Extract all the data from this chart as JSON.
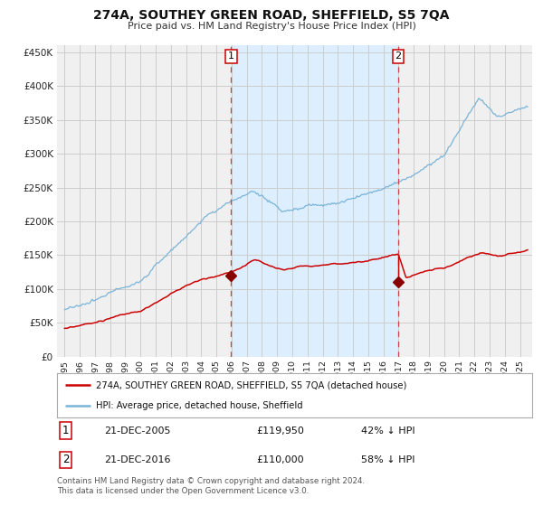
{
  "title": "274A, SOUTHEY GREEN ROAD, SHEFFIELD, S5 7QA",
  "subtitle": "Price paid vs. HM Land Registry's House Price Index (HPI)",
  "legend_line1": "274A, SOUTHEY GREEN ROAD, SHEFFIELD, S5 7QA (detached house)",
  "legend_line2": "HPI: Average price, detached house, Sheffield",
  "annotation1_date": "21-DEC-2005",
  "annotation1_price": "£119,950",
  "annotation1_pct": "42% ↓ HPI",
  "annotation2_date": "21-DEC-2016",
  "annotation2_price": "£110,000",
  "annotation2_pct": "58% ↓ HPI",
  "footer": "Contains HM Land Registry data © Crown copyright and database right 2024.\nThis data is licensed under the Open Government Licence v3.0.",
  "hpi_color": "#7ab4d8",
  "price_color": "#cc0000",
  "vline_color": "#cc4444",
  "shade_color": "#ddeeff",
  "marker_color": "#880000",
  "ylabel_color": "#222222",
  "grid_color": "#cccccc",
  "background_color": "#ffffff",
  "plot_bg_color": "#f0f0f0",
  "vline1_x": 2005.97,
  "vline2_x": 2016.97,
  "marker1_x": 2005.97,
  "marker1_y": 119950,
  "marker2_x": 2016.97,
  "marker2_y": 110000,
  "marker2_top_y": 150000,
  "ylim": [
    0,
    460000
  ],
  "xlim": [
    1994.5,
    2025.8
  ],
  "yticks": [
    0,
    50000,
    100000,
    150000,
    200000,
    250000,
    300000,
    350000,
    400000,
    450000
  ]
}
